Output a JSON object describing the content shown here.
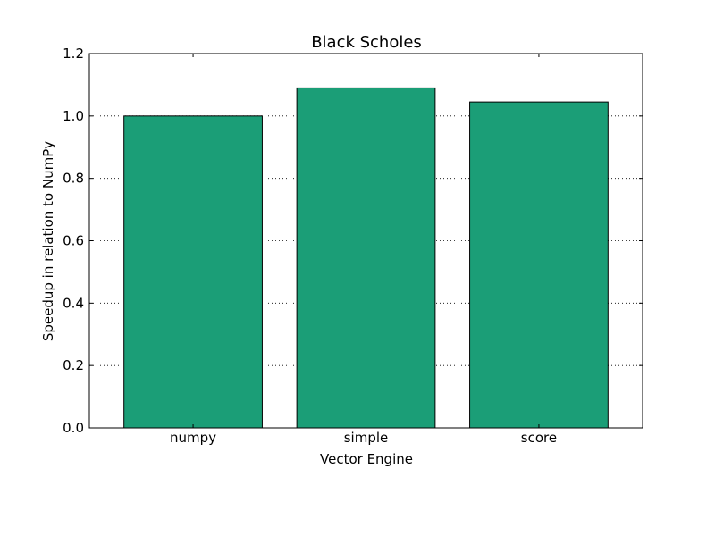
{
  "chart_data": {
    "type": "bar",
    "title": "Black Scholes",
    "xlabel": "Vector Engine",
    "ylabel": "Speedup in relation to NumPy",
    "categories": [
      "numpy",
      "simple",
      "score"
    ],
    "values": [
      1.0,
      1.09,
      1.045
    ],
    "ylim": [
      0,
      1.2
    ],
    "yticks": [
      "0.0",
      "0.2",
      "0.4",
      "0.6",
      "0.8",
      "1.0",
      "1.2"
    ],
    "grid": "y-dotted",
    "bar_color": "#1b9e77",
    "edge_color": "#000000"
  }
}
